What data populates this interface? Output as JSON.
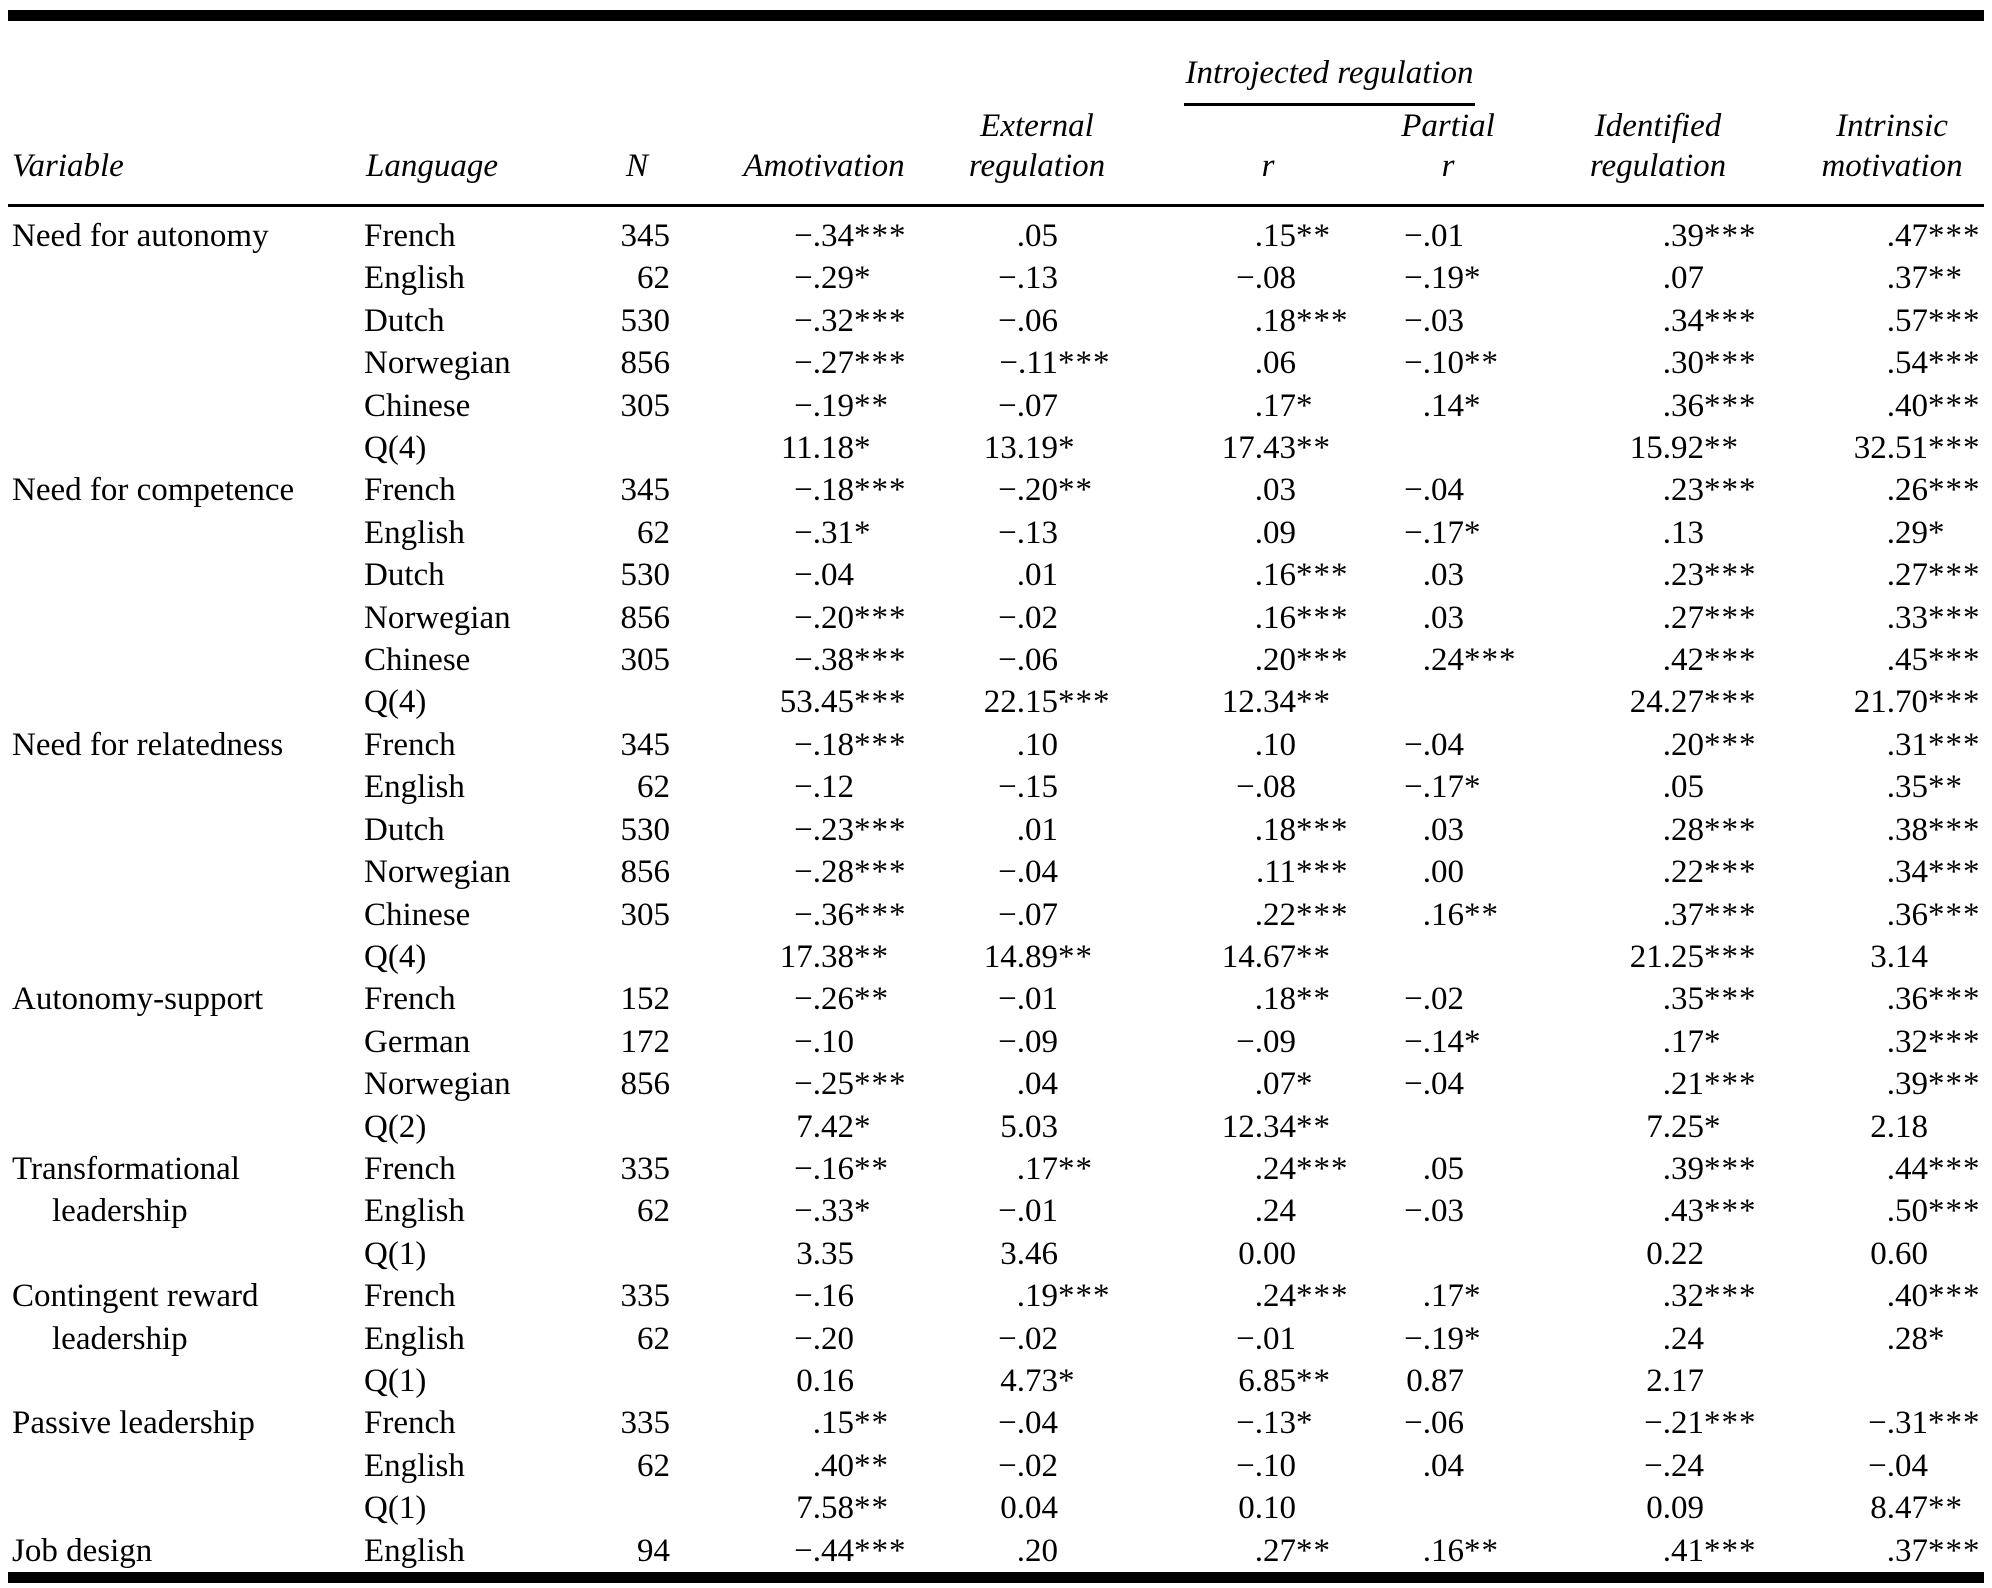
{
  "table": {
    "headers": {
      "variable": "Variable",
      "language": "Language",
      "n": "N",
      "amotivation": "Amotivation",
      "external1": "External",
      "external2": "regulation",
      "introjected": "Introjected regulation",
      "r": "r",
      "partial1": "Partial",
      "partial2": "r",
      "identified1": "Identified",
      "identified2": "regulation",
      "intrinsic1": "Intrinsic",
      "intrinsic2": "motivation"
    },
    "value_columns": [
      "Amotivation",
      "External regulation",
      "Introjected r",
      "Introjected partial r",
      "Identified regulation",
      "Intrinsic motivation"
    ],
    "rows": [
      {
        "variable": "Need for autonomy",
        "indent": false,
        "language": "French",
        "n": "345",
        "values": [
          "−.34***",
          ".05",
          ".15**",
          "−.01",
          ".39***",
          ".47***"
        ]
      },
      {
        "variable": "",
        "indent": false,
        "language": "English",
        "n": "62",
        "values": [
          "−.29*",
          "−.13",
          "−.08",
          "−.19*",
          ".07",
          ".37**"
        ]
      },
      {
        "variable": "",
        "indent": false,
        "language": "Dutch",
        "n": "530",
        "values": [
          "−.32***",
          "−.06",
          ".18***",
          "−.03",
          ".34***",
          ".57***"
        ]
      },
      {
        "variable": "",
        "indent": false,
        "language": "Norwegian",
        "n": "856",
        "values": [
          "−.27***",
          "−.11***",
          ".06",
          "−.10**",
          ".30***",
          ".54***"
        ]
      },
      {
        "variable": "",
        "indent": false,
        "language": "Chinese",
        "n": "305",
        "values": [
          "−.19**",
          "−.07",
          ".17*",
          ".14*",
          ".36***",
          ".40***"
        ]
      },
      {
        "variable": "",
        "indent": false,
        "language": "Q(4)",
        "n": "",
        "values": [
          "11.18*",
          "13.19*",
          "17.43**",
          "",
          "15.92**",
          "32.51***"
        ]
      },
      {
        "variable": "Need for competence",
        "indent": false,
        "language": "French",
        "n": "345",
        "values": [
          "−.18***",
          "−.20**",
          ".03",
          "−.04",
          ".23***",
          ".26***"
        ]
      },
      {
        "variable": "",
        "indent": false,
        "language": "English",
        "n": "62",
        "values": [
          "−.31*",
          "−.13",
          ".09",
          "−.17*",
          ".13",
          ".29*"
        ]
      },
      {
        "variable": "",
        "indent": false,
        "language": "Dutch",
        "n": "530",
        "values": [
          "−.04",
          ".01",
          ".16***",
          ".03",
          ".23***",
          ".27***"
        ]
      },
      {
        "variable": "",
        "indent": false,
        "language": "Norwegian",
        "n": "856",
        "values": [
          "−.20***",
          "−.02",
          ".16***",
          ".03",
          ".27***",
          ".33***"
        ]
      },
      {
        "variable": "",
        "indent": false,
        "language": "Chinese",
        "n": "305",
        "values": [
          "−.38***",
          "−.06",
          ".20***",
          ".24***",
          ".42***",
          ".45***"
        ]
      },
      {
        "variable": "",
        "indent": false,
        "language": "Q(4)",
        "n": "",
        "values": [
          "53.45***",
          "22.15***",
          "12.34**",
          "",
          "24.27***",
          "21.70***"
        ]
      },
      {
        "variable": "Need for relatedness",
        "indent": false,
        "language": "French",
        "n": "345",
        "values": [
          "−.18***",
          ".10",
          ".10",
          "−.04",
          ".20***",
          ".31***"
        ]
      },
      {
        "variable": "",
        "indent": false,
        "language": "English",
        "n": "62",
        "values": [
          "−.12",
          "−.15",
          "−.08",
          "−.17*",
          ".05",
          ".35**"
        ]
      },
      {
        "variable": "",
        "indent": false,
        "language": "Dutch",
        "n": "530",
        "values": [
          "−.23***",
          ".01",
          ".18***",
          ".03",
          ".28***",
          ".38***"
        ]
      },
      {
        "variable": "",
        "indent": false,
        "language": "Norwegian",
        "n": "856",
        "values": [
          "−.28***",
          "−.04",
          ".11***",
          ".00",
          ".22***",
          ".34***"
        ]
      },
      {
        "variable": "",
        "indent": false,
        "language": "Chinese",
        "n": "305",
        "values": [
          "−.36***",
          "−.07",
          ".22***",
          ".16**",
          ".37***",
          ".36***"
        ]
      },
      {
        "variable": "",
        "indent": false,
        "language": "Q(4)",
        "n": "",
        "values": [
          "17.38**",
          "14.89**",
          "14.67**",
          "",
          "21.25***",
          "3.14"
        ]
      },
      {
        "variable": "Autonomy-support",
        "indent": false,
        "language": "French",
        "n": "152",
        "values": [
          "−.26**",
          "−.01",
          ".18**",
          "−.02",
          ".35***",
          ".36***"
        ]
      },
      {
        "variable": "",
        "indent": false,
        "language": "German",
        "n": "172",
        "values": [
          "−.10",
          "−.09",
          "−.09",
          "−.14*",
          ".17*",
          ".32***"
        ]
      },
      {
        "variable": "",
        "indent": false,
        "language": "Norwegian",
        "n": "856",
        "values": [
          "−.25***",
          ".04",
          ".07*",
          "−.04",
          ".21***",
          ".39***"
        ]
      },
      {
        "variable": "",
        "indent": false,
        "language": "Q(2)",
        "n": "",
        "values": [
          "7.42*",
          "5.03",
          "12.34**",
          "",
          "7.25*",
          "2.18"
        ]
      },
      {
        "variable": "Transformational",
        "indent": false,
        "language": "French",
        "n": "335",
        "values": [
          "−.16**",
          ".17**",
          ".24***",
          ".05",
          ".39***",
          ".44***"
        ]
      },
      {
        "variable": "leadership",
        "indent": true,
        "language": "English",
        "n": "62",
        "values": [
          "−.33*",
          "−.01",
          ".24",
          "−.03",
          ".43***",
          ".50***"
        ]
      },
      {
        "variable": "",
        "indent": false,
        "language": "Q(1)",
        "n": "",
        "values": [
          "3.35",
          "3.46",
          "0.00",
          "",
          "0.22",
          "0.60"
        ]
      },
      {
        "variable": "Contingent reward",
        "indent": false,
        "language": "French",
        "n": "335",
        "values": [
          "−.16",
          ".19***",
          ".24***",
          ".17*",
          ".32***",
          ".40***"
        ]
      },
      {
        "variable": "leadership",
        "indent": true,
        "language": "English",
        "n": "62",
        "values": [
          "−.20",
          "−.02",
          "−.01",
          "−.19*",
          ".24",
          ".28*"
        ]
      },
      {
        "variable": "",
        "indent": false,
        "language": "Q(1)",
        "n": "",
        "values": [
          "0.16",
          "4.73*",
          "6.85**",
          "0.87",
          "2.17",
          ""
        ]
      },
      {
        "variable": "Passive leadership",
        "indent": false,
        "language": "French",
        "n": "335",
        "values": [
          ".15**",
          "−.04",
          "−.13*",
          "−.06",
          "−.21***",
          "−.31***"
        ]
      },
      {
        "variable": "",
        "indent": false,
        "language": "English",
        "n": "62",
        "values": [
          ".40**",
          "−.02",
          "−.10",
          ".04",
          "−.24",
          "−.04"
        ]
      },
      {
        "variable": "",
        "indent": false,
        "language": "Q(1)",
        "n": "",
        "values": [
          "7.58**",
          "0.04",
          "0.10",
          "",
          "0.09",
          "8.47**"
        ]
      },
      {
        "variable": "Job design",
        "indent": false,
        "language": "English",
        "n": "94",
        "values": [
          "−.44***",
          ".20",
          ".27**",
          ".16**",
          ".41***",
          ".37***"
        ]
      }
    ]
  }
}
